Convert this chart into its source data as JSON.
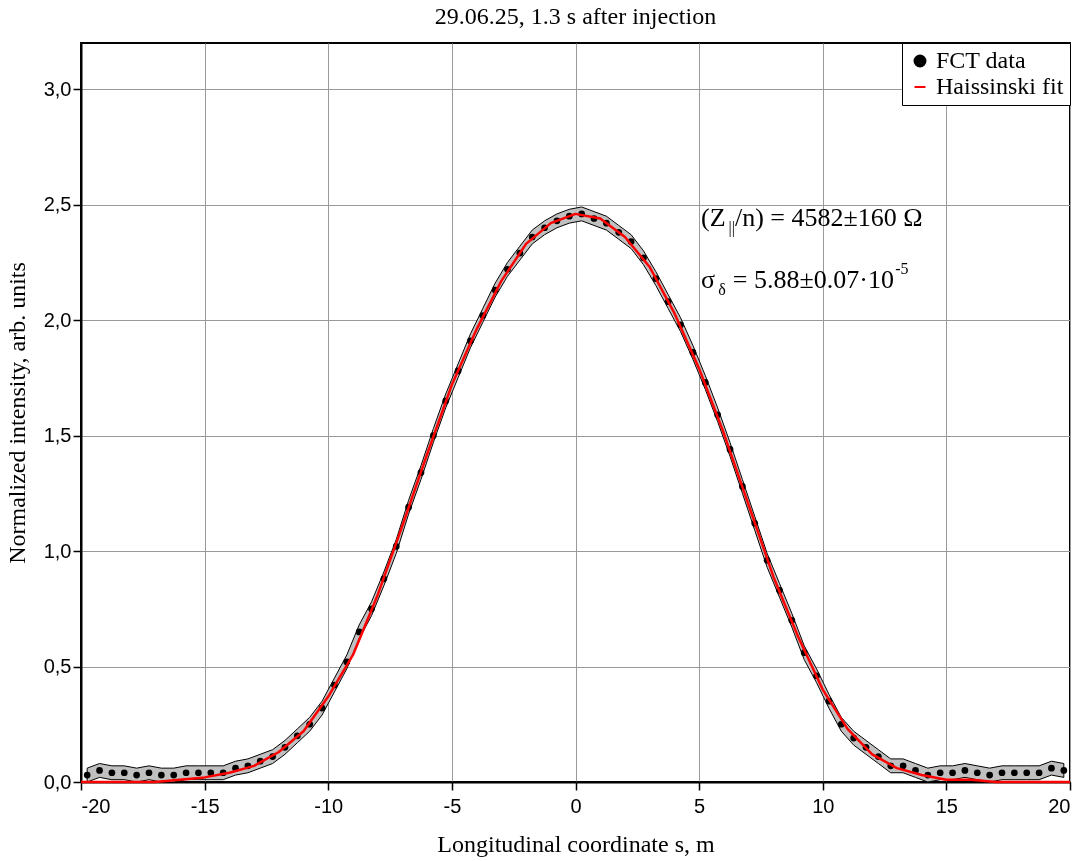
{
  "chart_data": {
    "type": "scatter",
    "title": "29.06.25, 1.3 s after injection",
    "xlabel": "Longitudinal coordinate s, m",
    "ylabel": "Normalized intensity, arb. units",
    "xlim": [
      -20,
      20
    ],
    "xticks": [
      -20,
      -15,
      -10,
      -5,
      0,
      5,
      10,
      15,
      20
    ],
    "ylim": [
      0,
      3.2
    ],
    "yticks": [
      {
        "value": 0,
        "label": "0,0"
      },
      {
        "value": 0.5,
        "label": "0,5"
      },
      {
        "value": 1,
        "label": "1,0"
      },
      {
        "value": 1.5,
        "label": "1,5"
      },
      {
        "value": 2,
        "label": "2,0"
      },
      {
        "value": 2.5,
        "label": "2,5"
      },
      {
        "value": 3,
        "label": "3,0"
      }
    ],
    "grid": true,
    "legend": "top right",
    "annotations": [
      "(Z$_{||}$/n) = 4582±160 Ω",
      "σ$_{δ}$ = 5.88±0.07·10$^{-5}$"
    ],
    "series": [
      {
        "name": "FCT data",
        "marker": "circle",
        "color": "#000000",
        "x": [
          -19.75,
          -19.25,
          -18.75,
          -18.25,
          -17.75,
          -17.25,
          -16.75,
          -16.25,
          -15.75,
          -15.25,
          -14.75,
          -14.25,
          -13.75,
          -13.25,
          -12.75,
          -12.25,
          -11.75,
          -11.25,
          -10.75,
          -10.25,
          -9.75,
          -9.25,
          -8.75,
          -8.25,
          -7.75,
          -7.25,
          -6.75,
          -6.25,
          -5.75,
          -5.25,
          -4.75,
          -4.25,
          -3.75,
          -3.25,
          -2.75,
          -2.25,
          -1.75,
          -1.25,
          -0.75,
          -0.25,
          0.25,
          0.75,
          1.25,
          1.75,
          2.25,
          2.75,
          3.25,
          3.75,
          4.25,
          4.75,
          5.25,
          5.75,
          6.25,
          6.75,
          7.25,
          7.75,
          8.25,
          8.75,
          9.25,
          9.75,
          10.25,
          10.75,
          11.25,
          11.75,
          12.25,
          12.75,
          13.25,
          13.75,
          14.25,
          14.75,
          15.25,
          15.75,
          16.25,
          16.75,
          17.25,
          17.75,
          18.25,
          18.75,
          19.25,
          19.75
        ],
        "values": [
          0.03,
          0.05,
          0.04,
          0.04,
          0.03,
          0.04,
          0.03,
          0.03,
          0.04,
          0.04,
          0.04,
          0.04,
          0.06,
          0.07,
          0.09,
          0.11,
          0.15,
          0.2,
          0.25,
          0.32,
          0.42,
          0.52,
          0.65,
          0.75,
          0.88,
          1.02,
          1.19,
          1.34,
          1.5,
          1.65,
          1.78,
          1.91,
          2.02,
          2.13,
          2.22,
          2.29,
          2.36,
          2.4,
          2.43,
          2.45,
          2.46,
          2.44,
          2.42,
          2.38,
          2.34,
          2.27,
          2.18,
          2.08,
          1.98,
          1.86,
          1.73,
          1.59,
          1.44,
          1.28,
          1.12,
          0.96,
          0.83,
          0.7,
          0.56,
          0.46,
          0.35,
          0.25,
          0.19,
          0.15,
          0.11,
          0.07,
          0.07,
          0.05,
          0.03,
          0.04,
          0.04,
          0.05,
          0.04,
          0.03,
          0.04,
          0.04,
          0.04,
          0.04,
          0.06,
          0.05
        ],
        "lower": [
          0.0,
          0.02,
          0.01,
          0.01,
          0.0,
          0.01,
          0.0,
          0.0,
          0.01,
          0.01,
          0.01,
          0.01,
          0.03,
          0.04,
          0.06,
          0.08,
          0.12,
          0.17,
          0.22,
          0.29,
          0.39,
          0.49,
          0.62,
          0.72,
          0.85,
          0.99,
          1.16,
          1.31,
          1.47,
          1.62,
          1.75,
          1.88,
          1.99,
          2.1,
          2.19,
          2.26,
          2.33,
          2.37,
          2.4,
          2.42,
          2.43,
          2.41,
          2.39,
          2.35,
          2.31,
          2.24,
          2.15,
          2.05,
          1.95,
          1.83,
          1.7,
          1.56,
          1.41,
          1.25,
          1.09,
          0.93,
          0.8,
          0.67,
          0.53,
          0.43,
          0.32,
          0.22,
          0.16,
          0.12,
          0.08,
          0.04,
          0.04,
          0.02,
          0.0,
          0.01,
          0.01,
          0.02,
          0.01,
          0.0,
          0.01,
          0.01,
          0.01,
          0.01,
          0.03,
          0.02
        ],
        "upper": [
          0.06,
          0.08,
          0.07,
          0.07,
          0.06,
          0.07,
          0.06,
          0.06,
          0.07,
          0.07,
          0.07,
          0.07,
          0.09,
          0.1,
          0.12,
          0.14,
          0.18,
          0.23,
          0.28,
          0.35,
          0.45,
          0.55,
          0.68,
          0.78,
          0.91,
          1.05,
          1.22,
          1.37,
          1.53,
          1.68,
          1.81,
          1.94,
          2.05,
          2.16,
          2.25,
          2.32,
          2.39,
          2.43,
          2.46,
          2.48,
          2.49,
          2.47,
          2.45,
          2.41,
          2.37,
          2.3,
          2.21,
          2.11,
          2.01,
          1.89,
          1.76,
          1.62,
          1.47,
          1.31,
          1.15,
          0.99,
          0.86,
          0.73,
          0.59,
          0.49,
          0.38,
          0.28,
          0.22,
          0.18,
          0.14,
          0.1,
          0.1,
          0.08,
          0.06,
          0.07,
          0.07,
          0.08,
          0.07,
          0.06,
          0.07,
          0.07,
          0.07,
          0.07,
          0.09,
          0.08
        ]
      },
      {
        "name": "Haissinski fit",
        "type": "line",
        "line_style": "solid",
        "color": "#ff0000",
        "x": [
          -20,
          -19,
          -18,
          -17,
          -16,
          -15,
          -14,
          -13,
          -12,
          -11,
          -10,
          -9,
          -8,
          -7,
          -6,
          -5,
          -4,
          -3,
          -2,
          -1,
          0,
          1,
          2,
          3,
          4,
          5,
          6,
          7,
          8,
          9,
          10,
          11,
          12,
          13,
          14,
          15,
          16,
          17,
          18,
          19,
          20
        ],
        "values": [
          0,
          0,
          0,
          0,
          0.01,
          0.02,
          0.04,
          0.07,
          0.13,
          0.22,
          0.37,
          0.55,
          0.81,
          1.11,
          1.42,
          1.72,
          1.96,
          2.17,
          2.33,
          2.42,
          2.46,
          2.44,
          2.36,
          2.23,
          2.03,
          1.79,
          1.51,
          1.2,
          0.89,
          0.63,
          0.4,
          0.23,
          0.12,
          0.06,
          0.03,
          0.01,
          0.01,
          0,
          0,
          0,
          0
        ]
      }
    ]
  }
}
